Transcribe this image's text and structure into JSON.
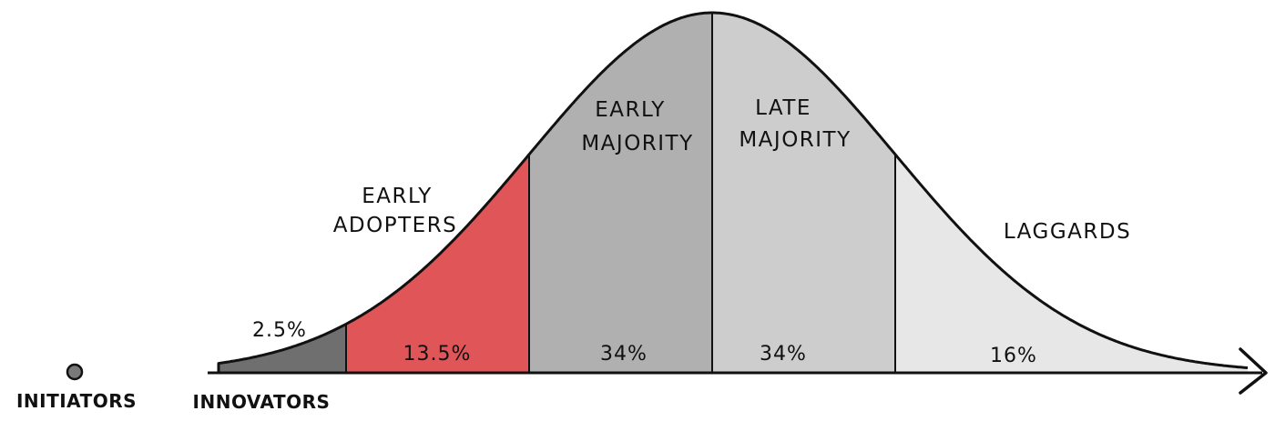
{
  "diagram": {
    "segments": [
      {
        "id": "innovators",
        "percent_label": "2.5%",
        "percent_value": 2.5,
        "name_lines": [],
        "color": "#6f6f6f"
      },
      {
        "id": "early_adopters",
        "percent_label": "13.5%",
        "percent_value": 13.5,
        "name_lines": [
          "EARLY",
          "ADOPTERS"
        ],
        "color": "#e05558"
      },
      {
        "id": "early_majority",
        "percent_label": "34%",
        "percent_value": 34,
        "name_lines": [
          "EARLY",
          "MAJORITY"
        ],
        "color": "#b0b0b0"
      },
      {
        "id": "late_majority",
        "percent_label": "34%",
        "percent_value": 34,
        "name_lines": [
          "LATE",
          "MAJORITY"
        ],
        "color": "#cdcdcd"
      },
      {
        "id": "laggards",
        "percent_label": "16%",
        "percent_value": 16,
        "name_lines": [
          "LAGGARDS"
        ],
        "color": "#e7e7e7"
      }
    ],
    "axis_labels": {
      "initiators": "INITIATORS",
      "innovators": "INNOVATORS"
    },
    "colors": {
      "outline": "#111111",
      "initiator_dot": "#7a7a7a"
    }
  }
}
